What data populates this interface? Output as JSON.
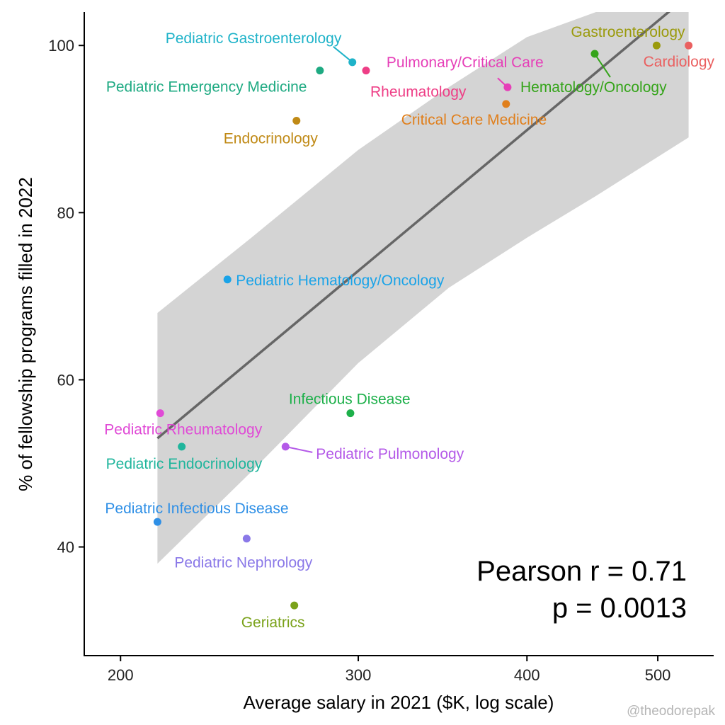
{
  "chart_data": {
    "type": "scatter",
    "title": "",
    "xlabel": "Average salary in 2021 ($K, log scale)",
    "ylabel": "% of fellowship programs filled in 2022",
    "x_scale": "log",
    "xlim": [
      188,
      550
    ],
    "ylim": [
      27,
      104
    ],
    "x_ticks": [
      200,
      300,
      400,
      500
    ],
    "y_ticks": [
      40,
      60,
      80,
      100
    ],
    "grid": false,
    "legend": "none",
    "points": [
      {
        "label": "Pediatric Gastroenterology",
        "x": 297,
        "y": 98,
        "color": "#1fb3c9"
      },
      {
        "label": "Pediatric Emergency Medicine",
        "x": 281,
        "y": 97,
        "color": "#1eaa82"
      },
      {
        "label": "Rheumatology",
        "x": 304,
        "y": 97,
        "color": "#ee3e86"
      },
      {
        "label": "Endocrinology",
        "x": 270,
        "y": 91,
        "color": "#c08a16"
      },
      {
        "label": "Pulmonary/Critical Care",
        "x": 387,
        "y": 95,
        "color": "#e63fb8"
      },
      {
        "label": "Critical Care Medicine",
        "x": 386,
        "y": 93,
        "color": "#e07f1c"
      },
      {
        "label": "Gastroenterology",
        "x": 499,
        "y": 100,
        "color": "#9a9a0b"
      },
      {
        "label": "Cardiology",
        "x": 527,
        "y": 100,
        "color": "#ea6060"
      },
      {
        "label": "Hematology/Oncology",
        "x": 449,
        "y": 99,
        "color": "#35a41a"
      },
      {
        "label": "Pediatric Hematology/Oncology",
        "x": 240,
        "y": 72,
        "color": "#1aa3e8"
      },
      {
        "label": "Infectious Disease",
        "x": 296,
        "y": 56,
        "color": "#1db04a"
      },
      {
        "label": "Pediatric Rheumatology",
        "x": 214,
        "y": 56,
        "color": "#e04ad6"
      },
      {
        "label": "Pediatric Endocrinology",
        "x": 222,
        "y": 52,
        "color": "#1fb59c"
      },
      {
        "label": "Pediatric Pulmonology",
        "x": 265,
        "y": 52,
        "color": "#b45ae8"
      },
      {
        "label": "Pediatric Infectious Disease",
        "x": 213,
        "y": 43,
        "color": "#2e8fe6"
      },
      {
        "label": "Pediatric Nephrology",
        "x": 248,
        "y": 41,
        "color": "#8a78e8"
      },
      {
        "label": "Geriatrics",
        "x": 269,
        "y": 33,
        "color": "#7aa21a"
      }
    ],
    "fit_line": {
      "x": [
        213,
        527
      ],
      "y": [
        53,
        106
      ],
      "color": "#666666"
    },
    "confidence_band": {
      "x": [
        213,
        250,
        300,
        350,
        400,
        450,
        527
      ],
      "upper": [
        68,
        77,
        87.5,
        95,
        101,
        104,
        104
      ],
      "lower": [
        38,
        49,
        62,
        71,
        77,
        82,
        89
      ],
      "color": "#d4d4d4"
    },
    "annotation": {
      "line1": "Pearson r = 0.71",
      "line2": "p = 0.0013"
    },
    "credit": "@theodorepak"
  }
}
